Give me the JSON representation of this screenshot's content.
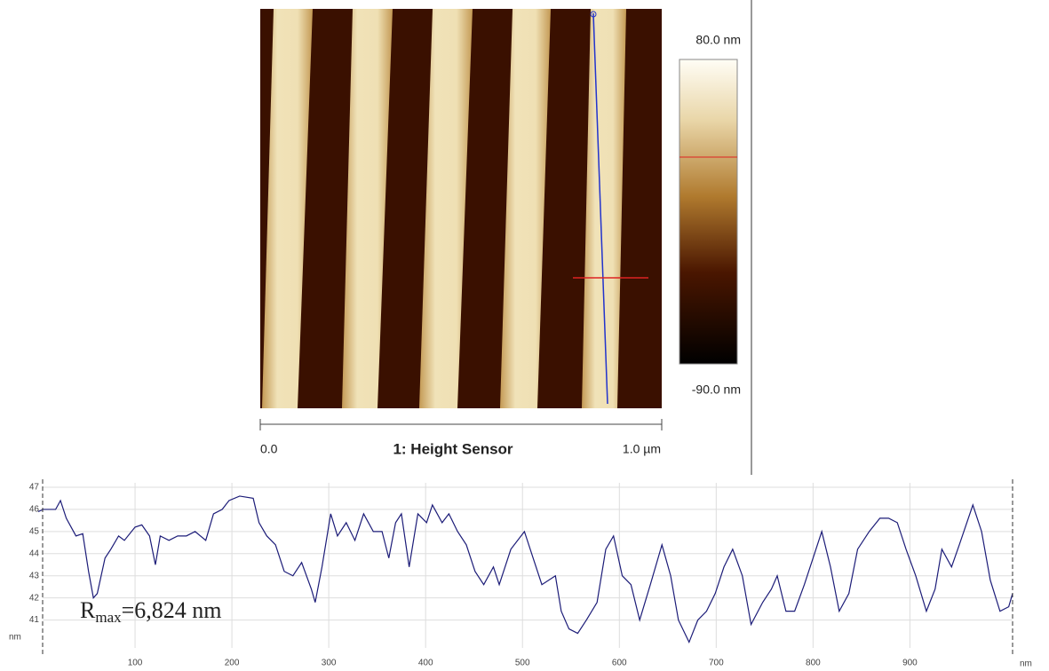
{
  "chart_data": [
    {
      "type": "image",
      "title": "1: Height Sensor",
      "x_labels": [
        "0.0",
        "1.0 µm"
      ],
      "colorbar_labels": [
        "80.0 nm",
        "-90.0 nm"
      ]
    },
    {
      "type": "line",
      "color": "#1c1c78",
      "x_label": "nm",
      "y_label": "nm",
      "annotation": {
        "base": "R",
        "sub": "max",
        "rest": "=6,824 nm"
      },
      "x": [
        0,
        5,
        18,
        23,
        29,
        39,
        46,
        52,
        57,
        61,
        69,
        75,
        83,
        89,
        100,
        107,
        115,
        121,
        126,
        135,
        144,
        153,
        162,
        173,
        181,
        190,
        197,
        208,
        222,
        228,
        236,
        245,
        254,
        263,
        272,
        282,
        286,
        293,
        302,
        309,
        318,
        327,
        336,
        346,
        355,
        362,
        369,
        375,
        383,
        392,
        401,
        407,
        417,
        424,
        433,
        442,
        451,
        460,
        470,
        476,
        488,
        502,
        511,
        520,
        534,
        540,
        548,
        557,
        566,
        577,
        586,
        594,
        603,
        612,
        621,
        632,
        644,
        653,
        661,
        672,
        681,
        690,
        699,
        708,
        717,
        727,
        736,
        748,
        757,
        763,
        772,
        781,
        791,
        800,
        809,
        818,
        827,
        837,
        846,
        858,
        869,
        878,
        887,
        896,
        906,
        917,
        926,
        933,
        943,
        951,
        965,
        974,
        983,
        993,
        1002,
        1006
      ],
      "values": [
        45.9,
        46.0,
        46.0,
        46.4,
        45.6,
        44.8,
        44.9,
        43.2,
        42.0,
        42.2,
        43.8,
        44.2,
        44.8,
        44.6,
        45.2,
        45.3,
        44.8,
        43.5,
        44.8,
        44.6,
        44.8,
        44.8,
        45.0,
        44.6,
        45.8,
        46.0,
        46.4,
        46.6,
        46.5,
        45.4,
        44.8,
        44.4,
        43.2,
        43.0,
        43.6,
        42.4,
        41.8,
        43.4,
        45.8,
        44.8,
        45.4,
        44.6,
        45.8,
        45.0,
        45.0,
        43.8,
        45.4,
        45.8,
        43.4,
        45.8,
        45.4,
        46.2,
        45.4,
        45.8,
        45.0,
        44.4,
        43.2,
        42.6,
        43.4,
        42.6,
        44.2,
        45.0,
        43.8,
        42.6,
        43.0,
        41.4,
        40.6,
        40.4,
        41.0,
        41.8,
        44.2,
        44.8,
        43.0,
        42.6,
        41.0,
        42.6,
        44.4,
        43.0,
        41.0,
        40.0,
        41.0,
        41.4,
        42.2,
        43.4,
        44.2,
        43.0,
        40.8,
        41.8,
        42.4,
        43.0,
        41.4,
        41.4,
        42.6,
        43.8,
        45.0,
        43.4,
        41.4,
        42.2,
        44.2,
        45.0,
        45.6,
        45.6,
        45.4,
        44.2,
        43.0,
        41.4,
        42.4,
        44.2,
        43.4,
        44.4,
        46.2,
        45.0,
        42.8,
        41.4,
        41.6,
        42.2
      ],
      "xlim": [
        0,
        1006
      ],
      "ylim": [
        39.5,
        47.2
      ],
      "xticks": [
        100,
        200,
        300,
        400,
        500,
        600,
        700,
        800,
        900
      ],
      "yticks": [
        41,
        42,
        43,
        44,
        45,
        46,
        47
      ],
      "grid": true
    }
  ]
}
